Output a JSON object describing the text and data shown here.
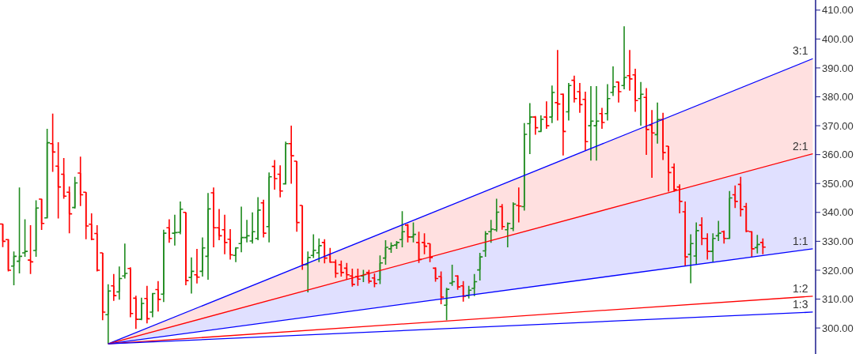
{
  "chart_data": {
    "type": "candlestick",
    "categories": [
      null,
      null,
      null,
      null,
      null,
      null,
      null,
      null,
      null,
      null,
      null,
      null,
      null,
      null,
      null,
      null,
      null,
      null,
      null,
      null,
      null,
      null,
      null,
      null,
      null,
      null,
      null,
      null,
      null,
      null,
      null,
      null,
      null,
      null,
      null,
      null,
      null,
      null,
      null,
      null,
      null,
      null,
      null,
      null,
      null,
      null,
      null,
      null,
      null,
      null,
      null,
      null,
      null,
      null,
      null,
      null,
      null,
      null,
      null,
      null,
      null,
      null,
      null,
      null,
      null,
      null,
      null,
      null,
      null,
      null,
      null,
      null,
      null,
      null,
      null,
      null,
      null,
      null,
      null,
      null,
      null,
      null,
      null,
      null,
      null,
      null,
      null,
      null,
      null,
      null,
      null,
      null,
      null,
      null,
      null,
      null,
      null,
      null,
      null,
      null,
      null,
      null,
      null,
      null,
      null,
      null,
      null,
      null,
      null,
      null,
      null,
      null,
      null,
      null,
      null,
      null,
      null,
      null,
      null,
      null,
      null,
      null,
      null,
      null,
      null,
      null,
      null,
      null,
      null,
      null,
      null,
      null,
      null,
      null,
      null,
      null,
      null,
      null,
      null,
      null,
      null,
      null,
      null,
      null,
      null,
      null,
      null
    ],
    "ohlc": [
      [
        336,
        336,
        328,
        330
      ],
      [
        330.6,
        330.8,
        319.6,
        320
      ],
      [
        321.4,
        326.5,
        314.8,
        324.8
      ],
      [
        323.1,
        348.6,
        318.9,
        324.8
      ],
      [
        326,
        337.6,
        324.6,
        326.5
      ],
      [
        323.5,
        335.6,
        318.7,
        322.9
      ],
      [
        326.8,
        344.2,
        324.6,
        341.5
      ],
      [
        344.6,
        344.7,
        333.9,
        336.2
      ],
      [
        338.1,
        368.9,
        338.1,
        364.1
      ],
      [
        363.8,
        374.2,
        354,
        360.9
      ],
      [
        356,
        364.3,
        337.9,
        348.8
      ],
      [
        353.2,
        358.8,
        344.7,
        345.6
      ],
      [
        347,
        349,
        332.8,
        339.5
      ],
      [
        341.7,
        352.3,
        341.3,
        350.2
      ],
      [
        353.6,
        359.3,
        342.2,
        346.1
      ],
      [
        347,
        347,
        330.7,
        335.3
      ],
      [
        335.9,
        339.7,
        330.4,
        330.7
      ],
      [
        332.7,
        335.6,
        319.6,
        320
      ],
      [
        326,
        326,
        302.7,
        305.5
      ],
      [
        304.6,
        315.1,
        294.5,
        312.8
      ],
      [
        314.6,
        318.7,
        309.4,
        311.2
      ],
      [
        312.5,
        321.3,
        309.8,
        317.1
      ],
      [
        318,
        329.2,
        317.1,
        318.9
      ],
      [
        320.6,
        321,
        303.7,
        305
      ],
      [
        310.3,
        311.2,
        299.7,
        303
      ],
      [
        303,
        310.5,
        302.7,
        308.5
      ],
      [
        310.2,
        314.6,
        301.6,
        303.2
      ],
      [
        305.5,
        312.1,
        303.7,
        311.9
      ],
      [
        313.3,
        316.2,
        305.7,
        309.9
      ],
      [
        311.7,
        334,
        309,
        332.8
      ],
      [
        334.7,
        337.6,
        329.5,
        331
      ],
      [
        332.8,
        339.2,
        328.5,
        333
      ],
      [
        333.1,
        343.8,
        332.4,
        341.1
      ],
      [
        340,
        340,
        314.8,
        316.4
      ],
      [
        317.5,
        324.4,
        311.9,
        319.6
      ],
      [
        318.4,
        327.4,
        315.4,
        317.6
      ],
      [
        319.6,
        331.3,
        317.8,
        327.7
      ],
      [
        324.8,
        346.7,
        316.7,
        341.2
      ],
      [
        346.8,
        348.6,
        327.9,
        334.7
      ],
      [
        334.7,
        341.2,
        330.4,
        331.9
      ],
      [
        334,
        339.2,
        325.5,
        329.6
      ],
      [
        330.7,
        334.2,
        323.7,
        325.3
      ],
      [
        325.1,
        328,
        322.8,
        327.7
      ],
      [
        329.2,
        342,
        326.2,
        331.3
      ],
      [
        331.3,
        337.4,
        329.6,
        331.9
      ],
      [
        330.1,
        340,
        329.2,
        333.3
      ],
      [
        331,
        345.3,
        330.4,
        340.8
      ],
      [
        343.3,
        344.4,
        331.3,
        332.8
      ],
      [
        335.1,
        353.8,
        329.6,
        352.3
      ],
      [
        355.9,
        358.1,
        347.9,
        351.7
      ],
      [
        353.2,
        356.3,
        345.2,
        347.4
      ],
      [
        349.9,
        364.5,
        349.9,
        363.8
      ],
      [
        363.8,
        370,
        349.9,
        359.6
      ],
      [
        357.7,
        357.7,
        333.3,
        336.5
      ],
      [
        342.4,
        342.4,
        320.1,
        321.9
      ],
      [
        321.9,
        326.5,
        312.3,
        324.4
      ],
      [
        325.1,
        332.4,
        324.2,
        326.9
      ],
      [
        326,
        331,
        322.8,
        328.5
      ],
      [
        329.6,
        330.7,
        322.4,
        324.2
      ],
      [
        325.3,
        327.7,
        322.5,
        322.8
      ],
      [
        322.8,
        323.7,
        317.4,
        318.9
      ],
      [
        321.9,
        323.3,
        317.8,
        319.2
      ],
      [
        320.7,
        322.5,
        316.7,
        318.4
      ],
      [
        318,
        320.5,
        314.3,
        315.1
      ],
      [
        317.8,
        320.5,
        314.6,
        316.9
      ],
      [
        318,
        320.1,
        315.9,
        318.5
      ],
      [
        319.2,
        320.1,
        315.4,
        316.2
      ],
      [
        317.3,
        318.9,
        314.1,
        315.4
      ],
      [
        316.7,
        325.1,
        315.2,
        322.5
      ],
      [
        324.2,
        330.4,
        321.9,
        327.9
      ],
      [
        327.4,
        329.6,
        326,
        328.5
      ],
      [
        328.7,
        330.1,
        327.4,
        329.6
      ],
      [
        330.6,
        340.4,
        327.9,
        333.3
      ],
      [
        335.6,
        336,
        329.6,
        331.5
      ],
      [
        331.5,
        336.5,
        329.6,
        332.4
      ],
      [
        329.6,
        333.3,
        322.5,
        323.7
      ],
      [
        329.6,
        332.8,
        325.5,
        328.3
      ],
      [
        329.2,
        329.2,
        322.8,
        324.4
      ],
      [
        320.7,
        321,
        316,
        317.1
      ],
      [
        317.8,
        319.6,
        308.2,
        310.7
      ],
      [
        307.9,
        313.9,
        302.7,
        313.4
      ],
      [
        315.5,
        321.9,
        314.6,
        316
      ],
      [
        318,
        318.3,
        313.2,
        314.2
      ],
      [
        314.6,
        316.2,
        309.1,
        311
      ],
      [
        311.2,
        314.6,
        310.2,
        313.1
      ],
      [
        313.7,
        318.7,
        311,
        316
      ],
      [
        320.1,
        326,
        316.4,
        324.6
      ],
      [
        326.7,
        333.5,
        324.6,
        332.6
      ],
      [
        333.3,
        337.4,
        329.5,
        334.2
      ],
      [
        334,
        344.7,
        333.3,
        340.1
      ],
      [
        342,
        342.9,
        334,
        335.1
      ],
      [
        334,
        336.5,
        327.9,
        336.2
      ],
      [
        334.4,
        343.5,
        333.5,
        342.9
      ],
      [
        342.4,
        348.6,
        336.5,
        342.2
      ],
      [
        342,
        370.9,
        340.6,
        367
      ],
      [
        370.7,
        377.8,
        360.2,
        373
      ],
      [
        373,
        373.4,
        366.9,
        369.3
      ],
      [
        368,
        373.6,
        367.8,
        372.2
      ],
      [
        373,
        378.4,
        368.9,
        370
      ],
      [
        373,
        383.9,
        370.9,
        381.5
      ],
      [
        378,
        396.2,
        371.8,
        377.5
      ],
      [
        380.9,
        381.2,
        359.7,
        368
      ],
      [
        374.8,
        384.8,
        371.8,
        383.9
      ],
      [
        385.7,
        387.3,
        378,
        379.4
      ],
      [
        381.8,
        384.8,
        374.5,
        377.3
      ],
      [
        379.1,
        381.8,
        361.4,
        364.5
      ],
      [
        370,
        383.7,
        357.9,
        371.6
      ],
      [
        370,
        383.7,
        357.9,
        371.6
      ],
      [
        374.2,
        376.2,
        368.9,
        371.1
      ],
      [
        374.2,
        384.4,
        371.8,
        379.4
      ],
      [
        381.5,
        390.5,
        380.3,
        383.5
      ],
      [
        385.1,
        385.3,
        378,
        381.8
      ],
      [
        383.9,
        404.4,
        382.6,
        386.7
      ],
      [
        387.3,
        396.2,
        382.1,
        386.2
      ],
      [
        387.6,
        389.7,
        374.8,
        378.7
      ],
      [
        379.4,
        385.1,
        370,
        380.9
      ],
      [
        379.8,
        383,
        359.9,
        368.7
      ],
      [
        370.2,
        375.4,
        352,
        367.5
      ],
      [
        366.9,
        378,
        363.8,
        372.1
      ],
      [
        372.1,
        374.5,
        358.1,
        360.7
      ],
      [
        362.9,
        362.9,
        347.2,
        353.8
      ],
      [
        355.6,
        357,
        347.2,
        347.9
      ],
      [
        348.8,
        349.7,
        339.7,
        343.8
      ],
      [
        340.2,
        343.8,
        321.4,
        324.6
      ],
      [
        325.5,
        332.4,
        315.5,
        329.2
      ],
      [
        324.9,
        336.5,
        321.9,
        333.7
      ],
      [
        335.6,
        338.3,
        328.7,
        331
      ],
      [
        331,
        332.8,
        323.7,
        326.5
      ],
      [
        326.5,
        332.8,
        322.8,
        331
      ],
      [
        331.9,
        337.1,
        330.1,
        332.8
      ],
      [
        333.3,
        333.7,
        329.2,
        331
      ],
      [
        331,
        347.4,
        331,
        345
      ],
      [
        346.1,
        349.3,
        341.5,
        343.8
      ],
      [
        349.7,
        352.3,
        338.6,
        341
      ],
      [
        342,
        343.3,
        333.1,
        333.5
      ],
      [
        333.3,
        333.5,
        324.6,
        327.4
      ],
      [
        327.8,
        332.2,
        325.8,
        328.9
      ],
      [
        329.6,
        331,
        325.5,
        328
      ],
      null,
      null,
      null,
      null,
      null,
      null,
      null,
      null,
      null
    ],
    "colors": [
      "#ff0000",
      "#ff0000",
      "#1f8b1f",
      "#1f8b1f",
      "#1f8b1f",
      "#ff0000",
      "#1f8b1f",
      "#ff0000",
      "#1f8b1f",
      "#ff0000",
      "#ff0000",
      "#ff0000",
      "#ff0000",
      "#1f8b1f",
      "#ff0000",
      "#ff0000",
      "#ff0000",
      "#ff0000",
      "#ff0000",
      "#1f8b1f",
      "#ff0000",
      "#1f8b1f",
      "#1f8b1f",
      "#ff0000",
      "#ff0000",
      "#1f8b1f",
      "#ff0000",
      "#1f8b1f",
      "#ff0000",
      "#1f8b1f",
      "#ff0000",
      "#1f8b1f",
      "#1f8b1f",
      "#ff0000",
      "#1f8b1f",
      "#ff0000",
      "#1f8b1f",
      "#1f8b1f",
      "#ff0000",
      "#ff0000",
      "#ff0000",
      "#ff0000",
      "#1f8b1f",
      "#1f8b1f",
      "#1f8b1f",
      "#1f8b1f",
      "#1f8b1f",
      "#ff0000",
      "#1f8b1f",
      "#ff0000",
      "#ff0000",
      "#1f8b1f",
      "#ff0000",
      "#ff0000",
      "#ff0000",
      "#1f8b1f",
      "#1f8b1f",
      "#1f8b1f",
      "#ff0000",
      "#ff0000",
      "#ff0000",
      "#ff0000",
      "#ff0000",
      "#ff0000",
      "#ff0000",
      "#1f8b1f",
      "#ff0000",
      "#ff0000",
      "#1f8b1f",
      "#1f8b1f",
      "#1f8b1f",
      "#1f8b1f",
      "#1f8b1f",
      "#ff0000",
      "#1f8b1f",
      "#ff0000",
      "#ff0000",
      "#ff0000",
      "#ff0000",
      "#ff0000",
      "#1f8b1f",
      "#1f8b1f",
      "#ff0000",
      "#ff0000",
      "#1f8b1f",
      "#1f8b1f",
      "#1f8b1f",
      "#1f8b1f",
      "#1f8b1f",
      "#1f8b1f",
      "#ff0000",
      "#1f8b1f",
      "#1f8b1f",
      "#ff0000",
      "#1f8b1f",
      "#1f8b1f",
      "#ff0000",
      "#1f8b1f",
      "#ff0000",
      "#1f8b1f",
      "#ff0000",
      "#ff0000",
      "#1f8b1f",
      "#ff0000",
      "#ff0000",
      "#ff0000",
      "#1f8b1f",
      "#1f8b1f",
      "#ff0000",
      "#1f8b1f",
      "#1f8b1f",
      "#ff0000",
      "#1f8b1f",
      "#ff0000",
      "#ff0000",
      "#1f8b1f",
      "#ff0000",
      "#ff0000",
      "#1f8b1f",
      "#ff0000",
      "#ff0000",
      "#ff0000",
      "#ff0000",
      "#ff0000",
      "#1f8b1f",
      "#1f8b1f",
      "#ff0000",
      "#ff0000",
      "#1f8b1f",
      "#1f8b1f",
      "#ff0000",
      "#1f8b1f",
      "#ff0000",
      "#ff0000",
      "#ff0000",
      "#ff0000",
      "#1f8b1f",
      "#ff0000",
      null,
      null,
      null,
      null,
      null,
      null,
      null,
      null,
      null
    ],
    "series": [
      {
        "type": "line",
        "name": "3:1",
        "color": "#0000ff",
        "values": [
          null,
          null,
          null,
          null,
          null,
          null,
          null,
          null,
          null,
          null,
          null,
          null,
          null,
          null,
          null,
          null,
          null,
          null,
          null,
          294.5,
          null,
          null,
          null,
          null,
          null,
          null,
          null,
          null,
          null,
          null,
          null,
          null,
          null,
          null,
          null,
          null,
          null,
          null,
          null,
          null,
          null,
          null,
          null,
          null,
          null,
          null,
          null,
          null,
          null,
          null,
          null,
          null,
          null,
          null,
          null,
          null,
          null,
          null,
          null,
          null,
          null,
          null,
          null,
          null,
          null,
          null,
          null,
          null,
          null,
          null,
          null,
          null,
          null,
          null,
          null,
          null,
          null,
          null,
          null,
          null,
          null,
          null,
          null,
          null,
          null,
          null,
          null,
          null,
          null,
          null,
          null,
          null,
          null,
          null,
          null,
          null,
          null,
          null,
          null,
          null,
          null,
          null,
          null,
          null,
          null,
          null,
          null,
          null,
          null,
          null,
          null,
          null,
          null,
          null,
          null,
          null,
          null,
          null,
          null,
          null,
          null,
          null,
          null,
          null,
          null,
          null,
          null,
          null,
          null,
          null,
          null,
          null,
          null,
          null,
          null,
          null,
          null,
          null,
          null,
          null,
          null,
          null,
          null,
          null,
          null,
          null,
          393.2
        ]
      },
      {
        "type": "line",
        "name": "2:1",
        "color": "#ff0000",
        "values": [
          null,
          null,
          null,
          null,
          null,
          null,
          null,
          null,
          null,
          null,
          null,
          null,
          null,
          null,
          null,
          null,
          null,
          null,
          null,
          294.5,
          null,
          null,
          null,
          null,
          null,
          null,
          null,
          null,
          null,
          null,
          null,
          null,
          null,
          null,
          null,
          null,
          null,
          null,
          null,
          null,
          null,
          null,
          null,
          null,
          null,
          null,
          null,
          null,
          null,
          null,
          null,
          null,
          null,
          null,
          null,
          null,
          null,
          null,
          null,
          null,
          null,
          null,
          null,
          null,
          null,
          null,
          null,
          null,
          null,
          null,
          null,
          null,
          null,
          null,
          null,
          null,
          null,
          null,
          null,
          null,
          null,
          null,
          null,
          null,
          null,
          null,
          null,
          null,
          null,
          null,
          null,
          null,
          null,
          null,
          null,
          null,
          null,
          null,
          null,
          null,
          null,
          null,
          null,
          null,
          null,
          null,
          null,
          null,
          null,
          null,
          null,
          null,
          null,
          null,
          null,
          null,
          null,
          null,
          null,
          null,
          null,
          null,
          null,
          null,
          null,
          null,
          null,
          null,
          null,
          null,
          null,
          null,
          null,
          null,
          null,
          null,
          null,
          null,
          null,
          null,
          null,
          null,
          null,
          null,
          null,
          null,
          360.3
        ],
        "lower": [
          null,
          null,
          null,
          null,
          null,
          null,
          null,
          null,
          null,
          null,
          null,
          null,
          null,
          null,
          null,
          null,
          null,
          null,
          null,
          294.5,
          null,
          null,
          null,
          null,
          null,
          null,
          null,
          null,
          null,
          null,
          null,
          null,
          null,
          null,
          null,
          null,
          null,
          null,
          null,
          null,
          null,
          null,
          null,
          null,
          null,
          null,
          null,
          null,
          null,
          null,
          null,
          null,
          null,
          null,
          null,
          null,
          null,
          null,
          null,
          null,
          null,
          null,
          null,
          null,
          null,
          null,
          null,
          null,
          null,
          null,
          null,
          null,
          null,
          null,
          null,
          null,
          null,
          null,
          null,
          null,
          null,
          null,
          null,
          null,
          null,
          null,
          null,
          null,
          null,
          null,
          null,
          null,
          null,
          null,
          null,
          null,
          null,
          null,
          null,
          null,
          null,
          null,
          null,
          null,
          null,
          null,
          null,
          null,
          null,
          null,
          null,
          null,
          null,
          null,
          null,
          null,
          null,
          null,
          null,
          null,
          null,
          null,
          null,
          null,
          null,
          null,
          null,
          null,
          null,
          null,
          null,
          null,
          null,
          null,
          null,
          null,
          null,
          null,
          null,
          null,
          null,
          null,
          null,
          null,
          null,
          null,
          360.3
        ],
        "upper": [
          null,
          null,
          null,
          null,
          null,
          null,
          null,
          null,
          null,
          null,
          null,
          null,
          null,
          null,
          null,
          null,
          null,
          null,
          null,
          294.5,
          null,
          null,
          null,
          null,
          null,
          null,
          null,
          null,
          null,
          null,
          null,
          null,
          null,
          null,
          null,
          null,
          null,
          null,
          null,
          null,
          null,
          null,
          null,
          null,
          null,
          null,
          null,
          null,
          null,
          null,
          null,
          null,
          null,
          null,
          null,
          null,
          null,
          null,
          null,
          null,
          null,
          null,
          null,
          null,
          null,
          null,
          null,
          null,
          null,
          null,
          null,
          null,
          null,
          null,
          null,
          null,
          null,
          null,
          null,
          null,
          null,
          null,
          null,
          null,
          null,
          null,
          null,
          null,
          null,
          null,
          null,
          null,
          null,
          null,
          null,
          null,
          null,
          null,
          null,
          null,
          null,
          null,
          null,
          null,
          null,
          null,
          null,
          null,
          null,
          null,
          null,
          null,
          null,
          null,
          null,
          null,
          null,
          null,
          null,
          null,
          null,
          null,
          null,
          null,
          null,
          null,
          null,
          null,
          null,
          null,
          null,
          null,
          null,
          null,
          null,
          null,
          null,
          null,
          null,
          null,
          null,
          null,
          null,
          null,
          null,
          null,
          393.2
        ]
      },
      {
        "type": "line",
        "name": "1:1",
        "color": "#0000ff",
        "values": [
          null,
          null,
          null,
          null,
          null,
          null,
          null,
          null,
          null,
          null,
          null,
          null,
          null,
          null,
          null,
          null,
          null,
          null,
          null,
          294.5,
          null,
          null,
          null,
          null,
          null,
          null,
          null,
          null,
          null,
          null,
          null,
          null,
          null,
          null,
          null,
          null,
          null,
          null,
          null,
          null,
          null,
          null,
          null,
          null,
          null,
          null,
          null,
          null,
          null,
          null,
          null,
          null,
          null,
          null,
          null,
          null,
          null,
          null,
          null,
          null,
          null,
          null,
          null,
          null,
          null,
          null,
          null,
          null,
          null,
          null,
          null,
          null,
          null,
          null,
          null,
          null,
          null,
          null,
          null,
          null,
          null,
          null,
          null,
          null,
          null,
          null,
          null,
          null,
          null,
          null,
          null,
          null,
          null,
          null,
          null,
          null,
          null,
          null,
          null,
          null,
          null,
          null,
          null,
          null,
          null,
          null,
          null,
          null,
          null,
          null,
          null,
          null,
          null,
          null,
          null,
          null,
          null,
          null,
          null,
          null,
          null,
          null,
          null,
          null,
          null,
          null,
          null,
          null,
          null,
          null,
          null,
          null,
          null,
          null,
          null,
          null,
          null,
          null,
          null,
          null,
          null,
          null,
          null,
          null,
          null,
          null,
          327.4
        ],
        "lower": [
          null,
          null,
          null,
          null,
          null,
          null,
          null,
          null,
          null,
          null,
          null,
          null,
          null,
          null,
          null,
          null,
          null,
          null,
          null,
          294.5,
          null,
          null,
          null,
          null,
          null,
          null,
          null,
          null,
          null,
          null,
          null,
          null,
          null,
          null,
          null,
          null,
          null,
          null,
          null,
          null,
          null,
          null,
          null,
          null,
          null,
          null,
          null,
          null,
          null,
          null,
          null,
          null,
          null,
          null,
          null,
          null,
          null,
          null,
          null,
          null,
          null,
          null,
          null,
          null,
          null,
          null,
          null,
          null,
          null,
          null,
          null,
          null,
          null,
          null,
          null,
          null,
          null,
          null,
          null,
          null,
          null,
          null,
          null,
          null,
          null,
          null,
          null,
          null,
          null,
          null,
          null,
          null,
          null,
          null,
          null,
          null,
          null,
          null,
          null,
          null,
          null,
          null,
          null,
          null,
          null,
          null,
          null,
          null,
          null,
          null,
          null,
          null,
          null,
          null,
          null,
          null,
          null,
          null,
          null,
          null,
          null,
          null,
          null,
          null,
          null,
          null,
          null,
          null,
          null,
          null,
          null,
          null,
          null,
          null,
          null,
          null,
          null,
          null,
          null,
          null,
          null,
          null,
          null,
          null,
          null,
          null,
          327.4
        ],
        "upper": [
          null,
          null,
          null,
          null,
          null,
          null,
          null,
          null,
          null,
          null,
          null,
          null,
          null,
          null,
          null,
          null,
          null,
          null,
          null,
          294.5,
          null,
          null,
          null,
          null,
          null,
          null,
          null,
          null,
          null,
          null,
          null,
          null,
          null,
          null,
          null,
          null,
          null,
          null,
          null,
          null,
          null,
          null,
          null,
          null,
          null,
          null,
          null,
          null,
          null,
          null,
          null,
          null,
          null,
          null,
          null,
          null,
          null,
          null,
          null,
          null,
          null,
          null,
          null,
          null,
          null,
          null,
          null,
          null,
          null,
          null,
          null,
          null,
          null,
          null,
          null,
          null,
          null,
          null,
          null,
          null,
          null,
          null,
          null,
          null,
          null,
          null,
          null,
          null,
          null,
          null,
          null,
          null,
          null,
          null,
          null,
          null,
          null,
          null,
          null,
          null,
          null,
          null,
          null,
          null,
          null,
          null,
          null,
          null,
          null,
          null,
          null,
          null,
          null,
          null,
          null,
          null,
          null,
          null,
          null,
          null,
          null,
          null,
          null,
          null,
          null,
          null,
          null,
          null,
          null,
          null,
          null,
          null,
          null,
          null,
          null,
          null,
          null,
          null,
          null,
          null,
          null,
          null,
          null,
          null,
          null,
          null,
          360.3
        ]
      },
      {
        "type": "line",
        "name": "1:2",
        "color": "#ff0000",
        "values": [
          null,
          null,
          null,
          null,
          null,
          null,
          null,
          null,
          null,
          null,
          null,
          null,
          null,
          null,
          null,
          null,
          null,
          null,
          null,
          294.5,
          null,
          null,
          null,
          null,
          null,
          null,
          null,
          null,
          null,
          null,
          null,
          null,
          null,
          null,
          null,
          null,
          null,
          null,
          null,
          null,
          null,
          null,
          null,
          null,
          null,
          null,
          null,
          null,
          null,
          null,
          null,
          null,
          null,
          null,
          null,
          null,
          null,
          null,
          null,
          null,
          null,
          null,
          null,
          null,
          null,
          null,
          null,
          null,
          null,
          null,
          null,
          null,
          null,
          null,
          null,
          null,
          null,
          null,
          null,
          null,
          null,
          null,
          null,
          null,
          null,
          null,
          null,
          null,
          null,
          null,
          null,
          null,
          null,
          null,
          null,
          null,
          null,
          null,
          null,
          null,
          null,
          null,
          null,
          null,
          null,
          null,
          null,
          null,
          null,
          null,
          null,
          null,
          null,
          null,
          null,
          null,
          null,
          null,
          null,
          null,
          null,
          null,
          null,
          null,
          null,
          null,
          null,
          null,
          null,
          null,
          null,
          null,
          null,
          null,
          null,
          null,
          null,
          null,
          null,
          null,
          null,
          null,
          null,
          null,
          null,
          null,
          311
        ]
      },
      {
        "type": "line",
        "name": "1:3",
        "color": "#0000ff",
        "values": [
          null,
          null,
          null,
          null,
          null,
          null,
          null,
          null,
          null,
          null,
          null,
          null,
          null,
          null,
          null,
          null,
          null,
          null,
          null,
          294.5,
          null,
          null,
          null,
          null,
          null,
          null,
          null,
          null,
          null,
          null,
          null,
          null,
          null,
          null,
          null,
          null,
          null,
          null,
          null,
          null,
          null,
          null,
          null,
          null,
          null,
          null,
          null,
          null,
          null,
          null,
          null,
          null,
          null,
          null,
          null,
          null,
          null,
          null,
          null,
          null,
          null,
          null,
          null,
          null,
          null,
          null,
          null,
          null,
          null,
          null,
          null,
          null,
          null,
          null,
          null,
          null,
          null,
          null,
          null,
          null,
          null,
          null,
          null,
          null,
          null,
          null,
          null,
          null,
          null,
          null,
          null,
          null,
          null,
          null,
          null,
          null,
          null,
          null,
          null,
          null,
          null,
          null,
          null,
          null,
          null,
          null,
          null,
          null,
          null,
          null,
          null,
          null,
          null,
          null,
          null,
          null,
          null,
          null,
          null,
          null,
          null,
          null,
          null,
          null,
          null,
          null,
          null,
          null,
          null,
          null,
          null,
          null,
          null,
          null,
          null,
          null,
          null,
          null,
          null,
          null,
          null,
          null,
          null,
          null,
          null,
          null,
          305.5
        ]
      }
    ],
    "ylim": [
      291,
      413.5
    ],
    "yticks": [
      {
        "value": 300,
        "label": "300.00"
      },
      {
        "value": 310,
        "label": "310.00"
      },
      {
        "value": 320,
        "label": "320.00"
      },
      {
        "value": 330,
        "label": "330.00"
      },
      {
        "value": 340,
        "label": "340.00"
      },
      {
        "value": 350,
        "label": "350.00"
      },
      {
        "value": 360,
        "label": "360.00"
      },
      {
        "value": 370,
        "label": "370.00"
      },
      {
        "value": 380,
        "label": "380.00"
      },
      {
        "value": 390,
        "label": "390.00"
      },
      {
        "value": 400,
        "label": "400.00"
      },
      {
        "value": 410,
        "label": "410.00"
      }
    ],
    "tick_labels": "y"
  }
}
